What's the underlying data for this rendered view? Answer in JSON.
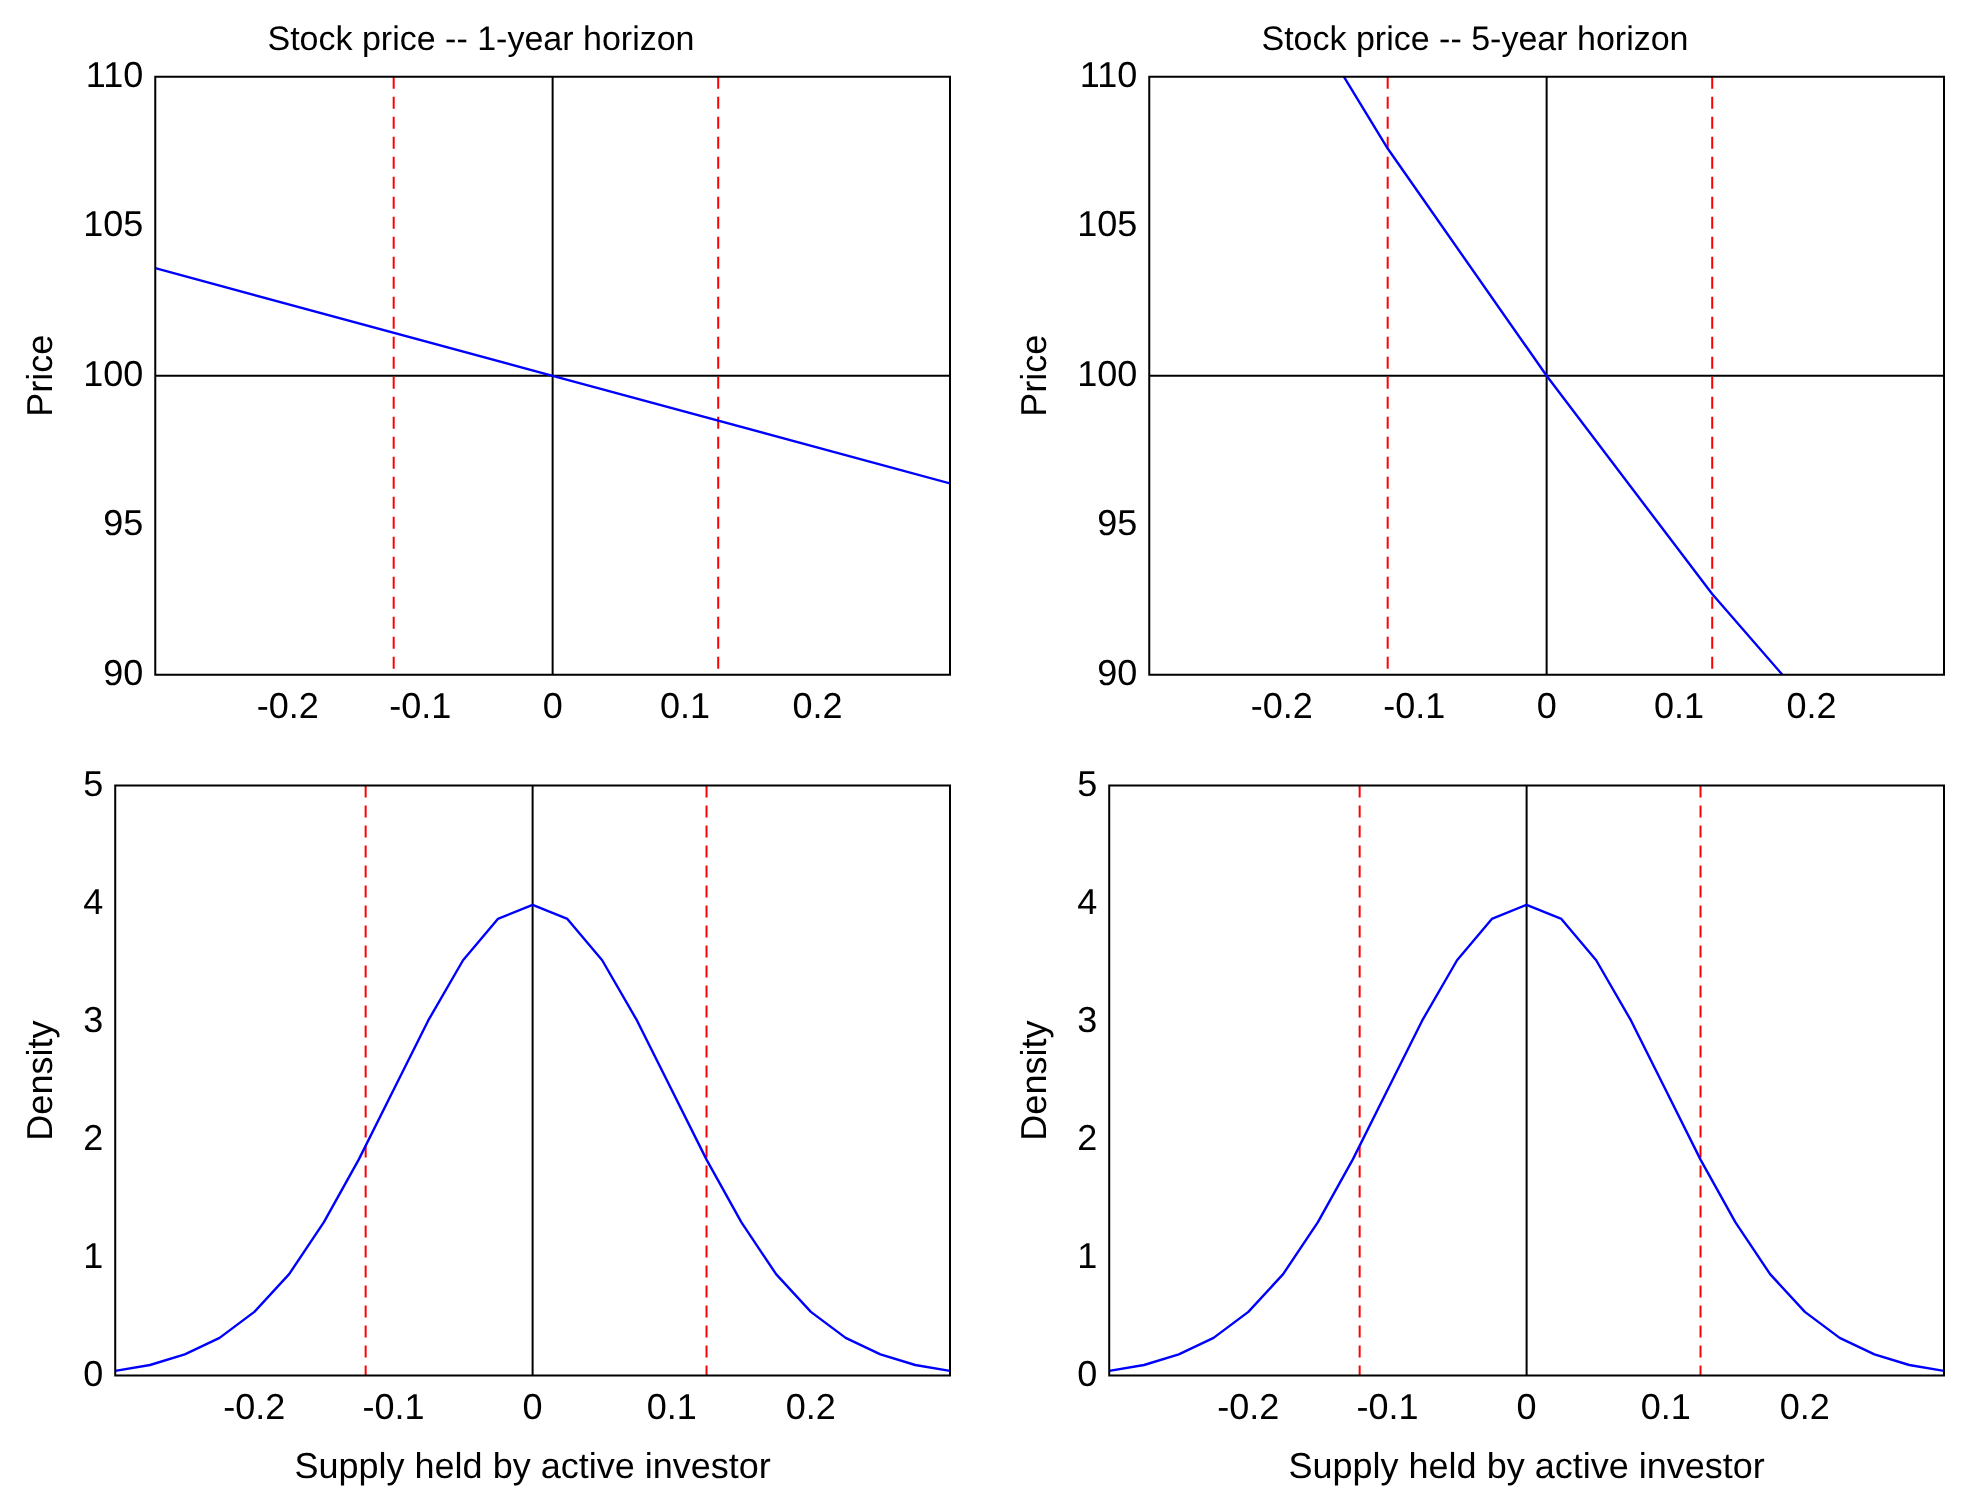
{
  "chart_data": [
    {
      "type": "line",
      "title": "Stock price -- 1-year horizon",
      "ylabel": "Price",
      "xlim": [
        -0.3,
        0.3
      ],
      "xticks": [
        -0.2,
        -0.1,
        0,
        0.1,
        0.2
      ],
      "ylim": [
        90,
        110
      ],
      "yticks": [
        90,
        95,
        100,
        105,
        110
      ],
      "grid": false,
      "legend": false,
      "marker": "none",
      "line_style": "solid",
      "series": [
        {
          "color": "#0000ff",
          "x": [
            -0.3,
            0,
            0.3
          ],
          "values": [
            103.6,
            100,
            96.4
          ]
        }
      ],
      "ref_lines": [
        {
          "axis": "y",
          "value": 100,
          "color": "#000000",
          "line_style": "solid"
        },
        {
          "axis": "x",
          "value": 0,
          "color": "#000000",
          "line_style": "solid"
        },
        {
          "axis": "x",
          "value": -0.12,
          "color": "#ff0000",
          "line_style": "dashed"
        },
        {
          "axis": "x",
          "value": 0.125,
          "color": "#ff0000",
          "line_style": "dashed"
        }
      ]
    },
    {
      "type": "line",
      "title": "Stock price -- 5-year horizon",
      "ylabel": "Price",
      "xlim": [
        -0.3,
        0.3
      ],
      "xticks": [
        -0.2,
        -0.1,
        0,
        0.1,
        0.2
      ],
      "ylim": [
        90,
        110
      ],
      "yticks": [
        90,
        95,
        100,
        105,
        110
      ],
      "grid": false,
      "legend": false,
      "marker": "none",
      "line_style": "solid",
      "series": [
        {
          "color": "#0000ff",
          "x": [
            -0.153,
            -0.12,
            0,
            0.125,
            0.178
          ],
          "values": [
            110,
            107.6,
            100,
            92.7,
            90
          ]
        }
      ],
      "ref_lines": [
        {
          "axis": "y",
          "value": 100,
          "color": "#000000",
          "line_style": "solid"
        },
        {
          "axis": "x",
          "value": 0,
          "color": "#000000",
          "line_style": "solid"
        },
        {
          "axis": "x",
          "value": -0.12,
          "color": "#ff0000",
          "line_style": "dashed"
        },
        {
          "axis": "x",
          "value": 0.125,
          "color": "#ff0000",
          "line_style": "dashed"
        }
      ]
    },
    {
      "type": "line",
      "xlabel": "Supply held by active investor",
      "ylabel": "Density",
      "xlim": [
        -0.3,
        0.3
      ],
      "xticks": [
        -0.2,
        -0.1,
        0,
        0.1,
        0.2
      ],
      "ylim": [
        0,
        5
      ],
      "yticks": [
        0,
        1,
        2,
        3,
        4,
        5
      ],
      "grid": false,
      "legend": false,
      "marker": "none",
      "line_style": "solid",
      "series": [
        {
          "color": "#0000ff",
          "x": [
            -0.3,
            -0.275,
            -0.25,
            -0.225,
            -0.2,
            -0.175,
            -0.15,
            -0.125,
            -0.1,
            -0.075,
            -0.05,
            -0.025,
            0,
            0.025,
            0.05,
            0.075,
            0.1,
            0.125,
            0.15,
            0.175,
            0.2,
            0.225,
            0.25,
            0.275,
            0.3
          ],
          "values": [
            0.04,
            0.09,
            0.18,
            0.32,
            0.54,
            0.86,
            1.3,
            1.83,
            2.42,
            3.01,
            3.52,
            3.87,
            3.99,
            3.87,
            3.52,
            3.01,
            2.42,
            1.83,
            1.3,
            0.86,
            0.54,
            0.32,
            0.18,
            0.09,
            0.04
          ]
        }
      ],
      "ref_lines": [
        {
          "axis": "x",
          "value": 0,
          "color": "#000000",
          "line_style": "solid"
        },
        {
          "axis": "x",
          "value": -0.12,
          "color": "#ff0000",
          "line_style": "dashed"
        },
        {
          "axis": "x",
          "value": 0.125,
          "color": "#ff0000",
          "line_style": "dashed"
        }
      ]
    },
    {
      "type": "line",
      "xlabel": "Supply held by active investor",
      "ylabel": "Density",
      "xlim": [
        -0.3,
        0.3
      ],
      "xticks": [
        -0.2,
        -0.1,
        0,
        0.1,
        0.2
      ],
      "ylim": [
        0,
        5
      ],
      "yticks": [
        0,
        1,
        2,
        3,
        4,
        5
      ],
      "grid": false,
      "legend": false,
      "marker": "none",
      "line_style": "solid",
      "series": [
        {
          "color": "#0000ff",
          "x": [
            -0.3,
            -0.275,
            -0.25,
            -0.225,
            -0.2,
            -0.175,
            -0.15,
            -0.125,
            -0.1,
            -0.075,
            -0.05,
            -0.025,
            0,
            0.025,
            0.05,
            0.075,
            0.1,
            0.125,
            0.15,
            0.175,
            0.2,
            0.225,
            0.25,
            0.275,
            0.3
          ],
          "values": [
            0.04,
            0.09,
            0.18,
            0.32,
            0.54,
            0.86,
            1.3,
            1.83,
            2.42,
            3.01,
            3.52,
            3.87,
            3.99,
            3.87,
            3.52,
            3.01,
            2.42,
            1.83,
            1.3,
            0.86,
            0.54,
            0.32,
            0.18,
            0.09,
            0.04
          ]
        }
      ],
      "ref_lines": [
        {
          "axis": "x",
          "value": 0,
          "color": "#000000",
          "line_style": "solid"
        },
        {
          "axis": "x",
          "value": -0.12,
          "color": "#ff0000",
          "line_style": "dashed"
        },
        {
          "axis": "x",
          "value": 0.125,
          "color": "#ff0000",
          "line_style": "dashed"
        }
      ]
    }
  ]
}
